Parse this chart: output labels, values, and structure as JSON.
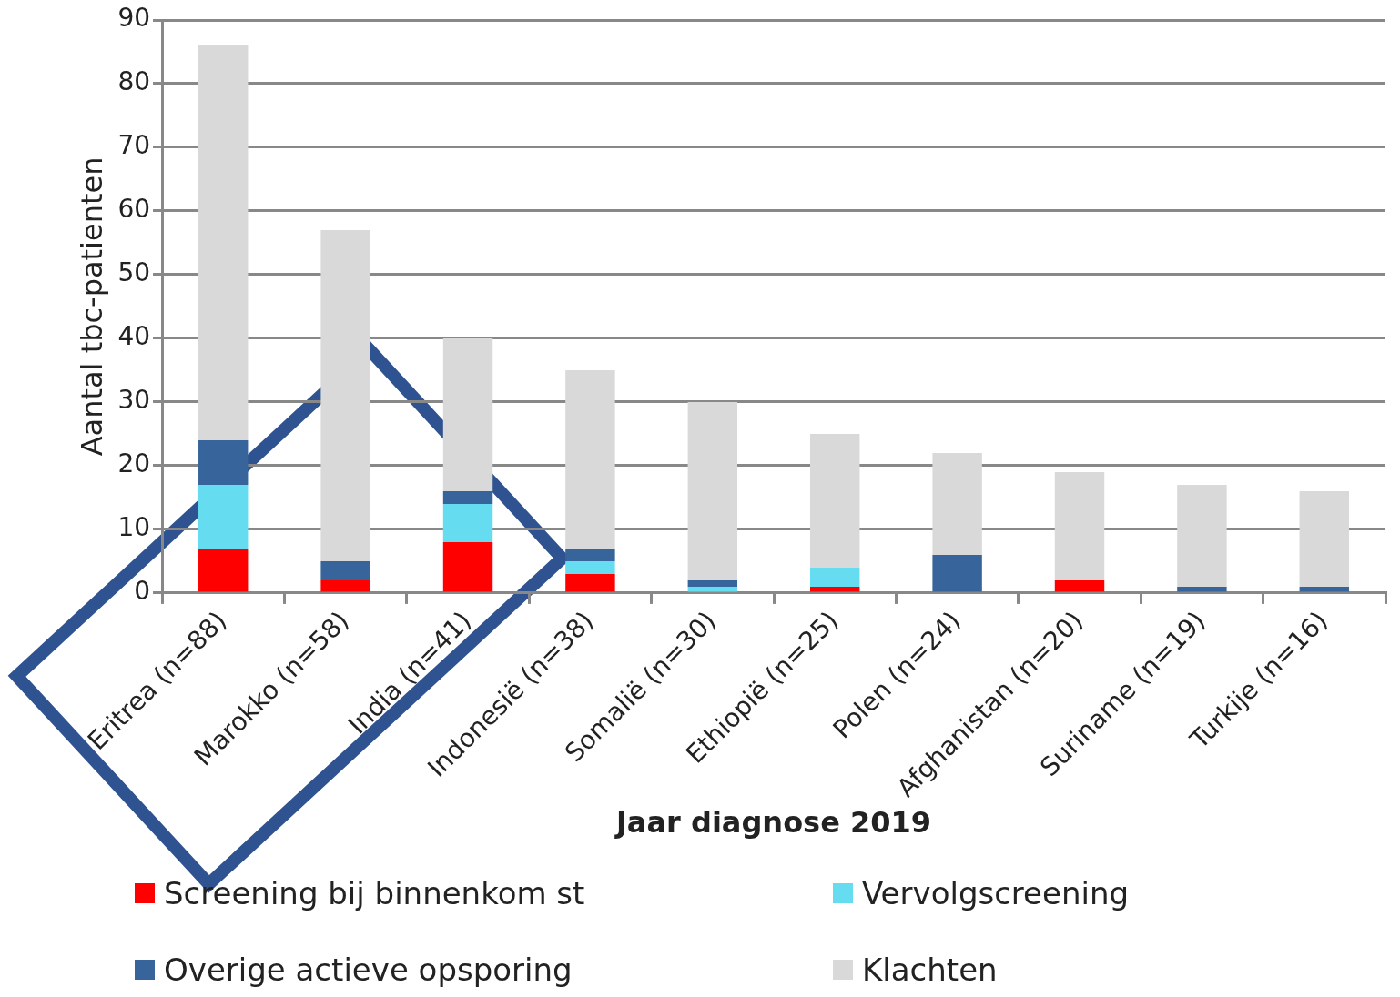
{
  "chart_data": {
    "type": "bar",
    "stacked": true,
    "xlabel": "Jaar diagnose 2019",
    "ylabel": "Aantal tbc-patienten",
    "categories": [
      "Eritrea (n=88)",
      "Marokko (n=58)",
      "India (n=41)",
      "Indonesië (n=38)",
      "Somalië (n=30)",
      "Ethiopië (n=25)",
      "Polen (n=24)",
      "Afghanistan (n=20)",
      "Suriname (n=19)",
      "Turkije (n=16)"
    ],
    "series": [
      {
        "name": "Screening bij binnenkom st",
        "color": "#ff0000",
        "values": [
          7,
          2,
          8,
          3,
          0,
          1,
          0,
          2,
          0,
          0
        ]
      },
      {
        "name": "Vervolgscreening",
        "color": "#66dcf0",
        "values": [
          10,
          0,
          6,
          2,
          1,
          3,
          0,
          0,
          0,
          0
        ]
      },
      {
        "name": "Overige actieve opsporing",
        "color": "#38649c",
        "values": [
          7,
          3,
          2,
          2,
          1,
          0,
          6,
          0,
          1,
          1
        ]
      },
      {
        "name": "Klachten",
        "color": "#d9d9d9",
        "values": [
          62,
          52,
          24,
          28,
          28,
          21,
          16,
          17,
          16,
          15
        ]
      }
    ],
    "ylim": [
      0,
      90
    ],
    "yticks": [
      0,
      10,
      20,
      30,
      40,
      50,
      60,
      70,
      80,
      90
    ],
    "grid": "y",
    "legend": "bottom"
  }
}
